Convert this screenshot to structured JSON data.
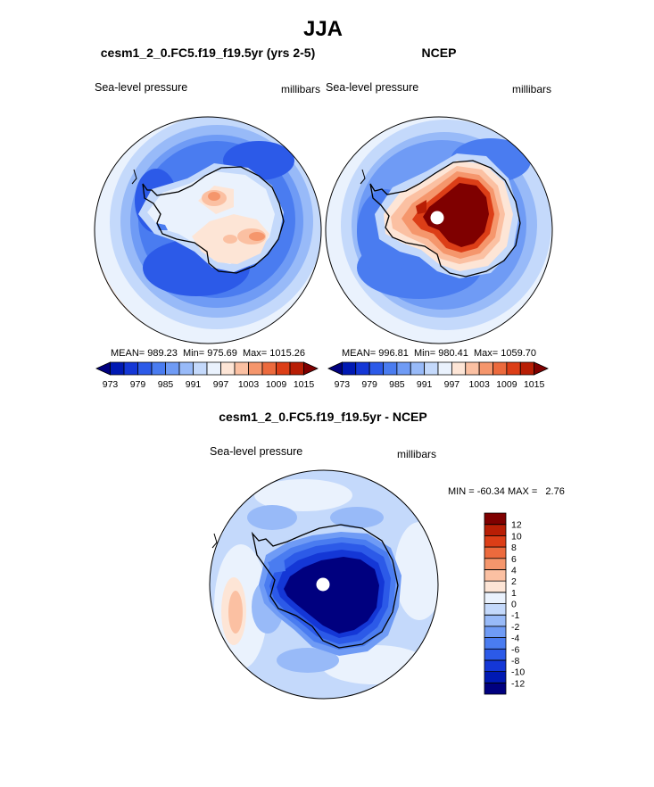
{
  "page_title": "JJA",
  "chart_data": [
    {
      "type": "heatmap",
      "projection": "south-polar-stereographic",
      "title": "cesm1_2_0.FC5.f19_f19.5yr (yrs 2-5)",
      "left_label": "Sea-level pressure",
      "right_label": "millibars",
      "stats_text": "MEAN= 989.23  Min= 975.69  Max= 1015.26",
      "stats": {
        "mean": 989.23,
        "min": 975.69,
        "max": 1015.26
      },
      "colorbar": {
        "orientation": "horizontal",
        "levels": [
          973,
          976,
          979,
          982,
          985,
          988,
          991,
          994,
          997,
          1000,
          1003,
          1006,
          1009,
          1012,
          1015
        ],
        "tick_labels": [
          "973",
          "979",
          "985",
          "991",
          "997",
          "1003",
          "1009",
          "1015"
        ],
        "colors": [
          "#00007f",
          "#0019b3",
          "#1437d6",
          "#2c5ae8",
          "#4a7cf0",
          "#6f9bf5",
          "#98baf8",
          "#c4d9fb",
          "#eaf2fd",
          "#fde5d6",
          "#fbc0a2",
          "#f5966c",
          "#ec6a3d",
          "#dc3e17",
          "#b81e05",
          "#7f0000"
        ]
      }
    },
    {
      "type": "heatmap",
      "projection": "south-polar-stereographic",
      "title": "NCEP",
      "left_label": "Sea-level pressure",
      "right_label": "millibars",
      "stats_text": "MEAN= 996.81  Min= 980.41  Max= 1059.70",
      "stats": {
        "mean": 996.81,
        "min": 980.41,
        "max": 1059.7
      },
      "colorbar": {
        "orientation": "horizontal",
        "levels": [
          973,
          976,
          979,
          982,
          985,
          988,
          991,
          994,
          997,
          1000,
          1003,
          1006,
          1009,
          1012,
          1015
        ],
        "tick_labels": [
          "973",
          "979",
          "985",
          "991",
          "997",
          "1003",
          "1009",
          "1015"
        ],
        "colors": [
          "#00007f",
          "#0019b3",
          "#1437d6",
          "#2c5ae8",
          "#4a7cf0",
          "#6f9bf5",
          "#98baf8",
          "#c4d9fb",
          "#eaf2fd",
          "#fde5d6",
          "#fbc0a2",
          "#f5966c",
          "#ec6a3d",
          "#dc3e17",
          "#b81e05",
          "#7f0000"
        ]
      }
    },
    {
      "type": "heatmap",
      "projection": "south-polar-stereographic",
      "title": "cesm1_2_0.FC5.f19_f19.5yr - NCEP",
      "left_label": "Sea-level pressure",
      "right_label": "millibars",
      "stats_text": "MIN = -60.34 MAX =   2.76",
      "stats": {
        "min": -60.34,
        "max": 2.76
      },
      "colorbar": {
        "orientation": "vertical",
        "levels": [
          -12,
          -10,
          -8,
          -6,
          -4,
          -2,
          -1,
          0,
          1,
          2,
          4,
          6,
          8,
          10,
          12
        ],
        "tick_labels": [
          "-12",
          "-10",
          "-8",
          "-6",
          "-4",
          "-2",
          "-1",
          "0",
          "1",
          "2",
          "4",
          "6",
          "8",
          "10",
          "12"
        ],
        "colors": [
          "#00007f",
          "#0019b3",
          "#1437d6",
          "#2c5ae8",
          "#4a7cf0",
          "#6f9bf5",
          "#98baf8",
          "#c4d9fb",
          "#eaf2fd",
          "#fde5d6",
          "#fbc0a2",
          "#f5966c",
          "#ec6a3d",
          "#dc3e17",
          "#b81e05",
          "#7f0000"
        ]
      }
    }
  ]
}
